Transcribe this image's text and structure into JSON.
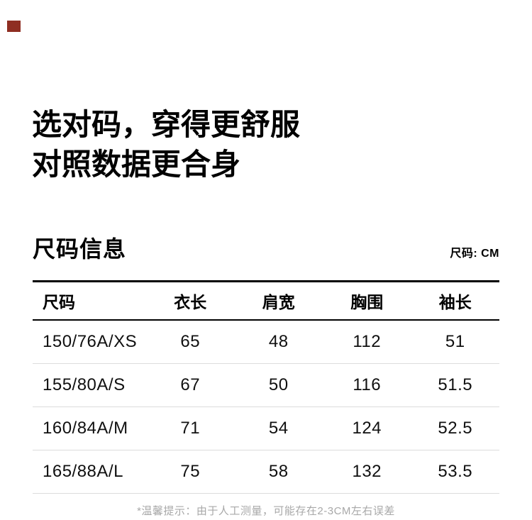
{
  "chart_data": {
    "type": "table",
    "title": "尺码信息",
    "unit_note": "尺码: CM",
    "columns": [
      "尺码",
      "衣长",
      "肩宽",
      "胸围",
      "袖长"
    ],
    "rows": [
      [
        "150/76A/XS",
        "65",
        "48",
        "112",
        "51"
      ],
      [
        "155/80A/S",
        "67",
        "50",
        "116",
        "51.5"
      ],
      [
        "160/84A/M",
        "71",
        "54",
        "124",
        "52.5"
      ],
      [
        "165/88A/L",
        "75",
        "58",
        "132",
        "53.5"
      ]
    ]
  },
  "heading": {
    "line1": "选对码，穿得更舒服",
    "line2": "对照数据更合身"
  },
  "section": {
    "title": "尺码信息",
    "unit_label": "尺码: CM"
  },
  "footer": {
    "note": "*温馨提示：由于人工测量，可能存在2-3CM左右误差"
  },
  "colors": {
    "accent_mark": "#8f2e22",
    "divider_strong": "#000000",
    "divider_light": "#dcdcdc",
    "footnote_gray": "#a8a8a8"
  }
}
